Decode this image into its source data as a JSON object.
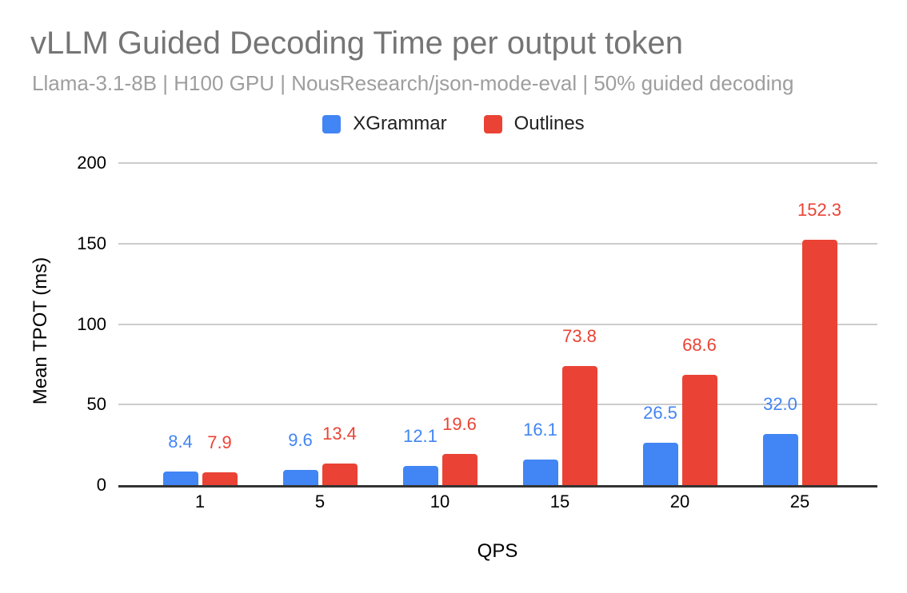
{
  "chart_data": {
    "type": "bar",
    "title": "vLLM Guided Decoding Time per output token",
    "subtitle": "Llama-3.1-8B | H100 GPU | NousResearch/json-mode-eval | 50% guided decoding",
    "categories": [
      1,
      5,
      10,
      15,
      20,
      25
    ],
    "series": [
      {
        "name": "XGrammar",
        "color": "#4285f4",
        "values": [
          8.4,
          9.6,
          12.1,
          16.1,
          26.5,
          32.0
        ]
      },
      {
        "name": "Outlines",
        "color": "#ea4335",
        "values": [
          7.9,
          13.4,
          19.6,
          73.8,
          68.6,
          152.3
        ]
      }
    ],
    "xlabel": "QPS",
    "ylabel": "Mean TPOT (ms)",
    "ylim": [
      0,
      200
    ],
    "yticks": [
      0,
      50,
      100,
      150,
      200
    ],
    "grid": true,
    "legend_position": "top",
    "data_labels": true,
    "colors": {
      "title": "#757575",
      "subtitle": "#9e9e9e",
      "gridline": "#cccccc",
      "axis_line": "#333333",
      "tick_text": "#000000"
    }
  }
}
